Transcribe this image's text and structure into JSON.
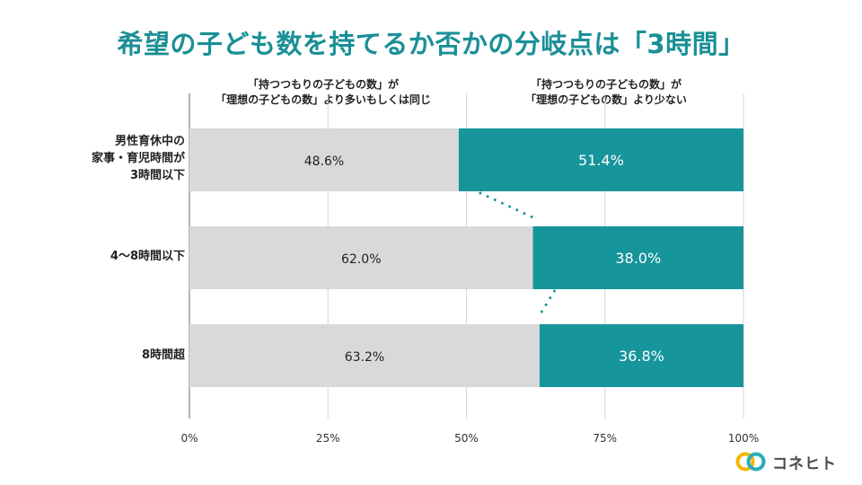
{
  "title": "希望の子ども数を持てるか否かの分岐点は「3時間」",
  "legend": [
    {
      "lines": [
        "「持つつもりの子どもの数」が",
        "「理想の子どもの数」より多いもしくは同じ"
      ]
    },
    {
      "lines": [
        "「持つつもりの子どもの数」が",
        "「理想の子どもの数」より少ない"
      ]
    }
  ],
  "brand": {
    "name": "コネヒト",
    "icon": "two-ring-logo-icon"
  },
  "colors": {
    "series1": "#d9d9d9",
    "series2": "#16959b",
    "title": "#1a8f96",
    "connector": "#16959b"
  },
  "chart_data": {
    "type": "bar",
    "orientation": "horizontal",
    "stacked": true,
    "title": "希望の子ども数を持てるか否かの分岐点は「3時間」",
    "categories": [
      [
        "男性育休中の",
        "家事・育児時間が",
        "3時間以下"
      ],
      [
        "4〜8時間以下"
      ],
      [
        "8時間超"
      ]
    ],
    "series": [
      {
        "name": "「持つつもりの子どもの数」が「理想の子どもの数」より多いもしくは同じ",
        "values": [
          48.6,
          62.0,
          63.2
        ],
        "labels": [
          "48.6%",
          "62.0%",
          "63.2%"
        ]
      },
      {
        "name": "「持つつもりの子どもの数」が「理想の子どもの数」より少ない",
        "values": [
          51.4,
          38.0,
          36.8
        ],
        "labels": [
          "51.4%",
          "38.0%",
          "36.8%"
        ]
      }
    ],
    "xlim": [
      0,
      100
    ],
    "ticks": [
      0,
      25,
      50,
      75,
      100
    ],
    "tick_labels": [
      "0%",
      "25%",
      "50%",
      "75%",
      "100%"
    ],
    "grid": true,
    "connector_lines": "dotted lines linking series boundaries between consecutive bars"
  }
}
